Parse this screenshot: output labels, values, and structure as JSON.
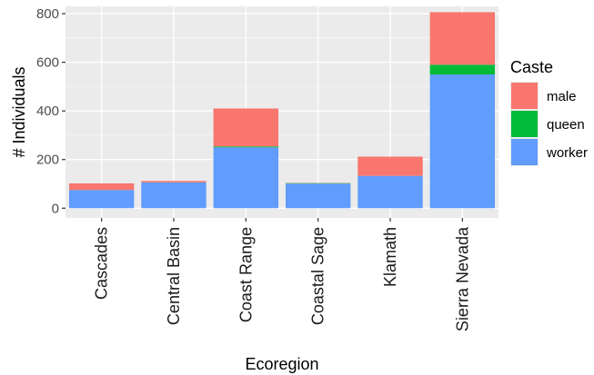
{
  "chart_data": {
    "type": "bar",
    "stacked": true,
    "categories": [
      "Cascades",
      "Central Basin",
      "Coast Range",
      "Coastal Sage",
      "Klamath",
      "Sierra Nevada"
    ],
    "series": [
      {
        "name": "worker",
        "color": "#619CFF",
        "values": [
          75,
          106,
          250,
          101,
          133,
          550
        ]
      },
      {
        "name": "queen",
        "color": "#00BA38",
        "values": [
          0,
          0,
          4,
          2,
          0,
          40
        ]
      },
      {
        "name": "male",
        "color": "#F8766D",
        "values": [
          27,
          6,
          156,
          1,
          79,
          216
        ]
      }
    ],
    "xlabel": "Ecoregion",
    "ylabel": "# Individuals",
    "ylim": [
      -40,
      830
    ],
    "yticks": [
      0,
      200,
      400,
      600,
      800
    ],
    "grid": true,
    "legend": {
      "title": "Caste",
      "placement": "right",
      "entries": [
        "male",
        "queen",
        "worker"
      ]
    },
    "panel_background": "#EBEBEB"
  }
}
